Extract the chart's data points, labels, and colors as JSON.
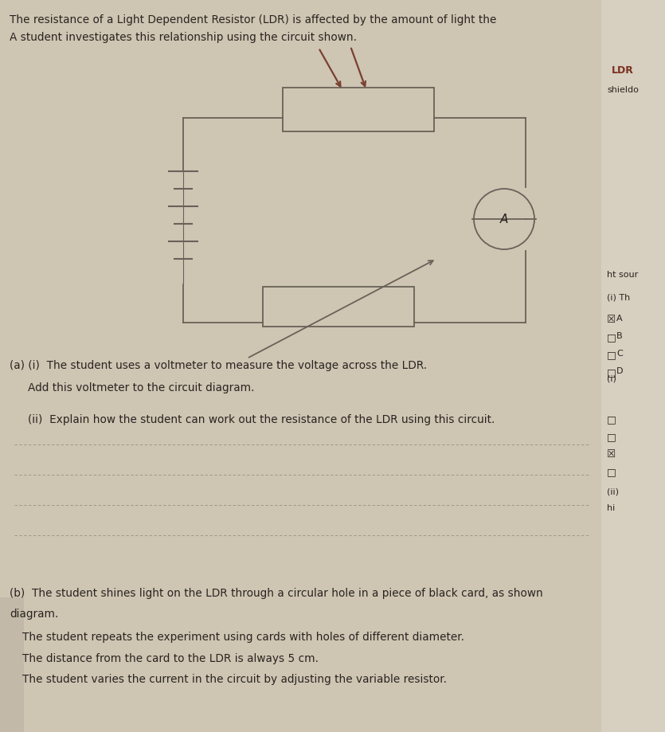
{
  "page_bg": "#ccc4b2",
  "right_margin_bg": "#ddd8cc",
  "line_color": "#6a6258",
  "text_color": "#2a2420",
  "title_line1": "The resistance of a Light Dependent Resistor (LDR) is affected by the amount of light the",
  "title_line2": "A student investigates this relationship using the circuit shown.",
  "right_label1": "LDR",
  "right_label2": "shieldo",
  "right_label3": "ht sour",
  "right_label4": "(i) Th",
  "part_a_i": "(a) (i)  The student uses a voltmeter to measure the voltage across the LDR.",
  "part_a_i_2": "Add this voltmeter to the circuit diagram.",
  "part_a_ii": "(ii)  Explain how the student can work out the resistance of the LDR using this circuit.",
  "part_b_1": "(b)  The student shines light on the LDR through a circular hole in a piece of black card, as shown",
  "part_b_2": "diagram.",
  "part_b_3": "The student repeats the experiment using cards with holes of different diameter.",
  "part_b_4": "The distance from the card to the LDR is always 5 cm.",
  "part_b_5": "The student varies the current in the circuit by adjusting the variable resistor.",
  "ldr_arrow_color": "#7a4030",
  "circuit_lw": 1.3,
  "ammeter_label": "A",
  "n_answer_lines": 4
}
